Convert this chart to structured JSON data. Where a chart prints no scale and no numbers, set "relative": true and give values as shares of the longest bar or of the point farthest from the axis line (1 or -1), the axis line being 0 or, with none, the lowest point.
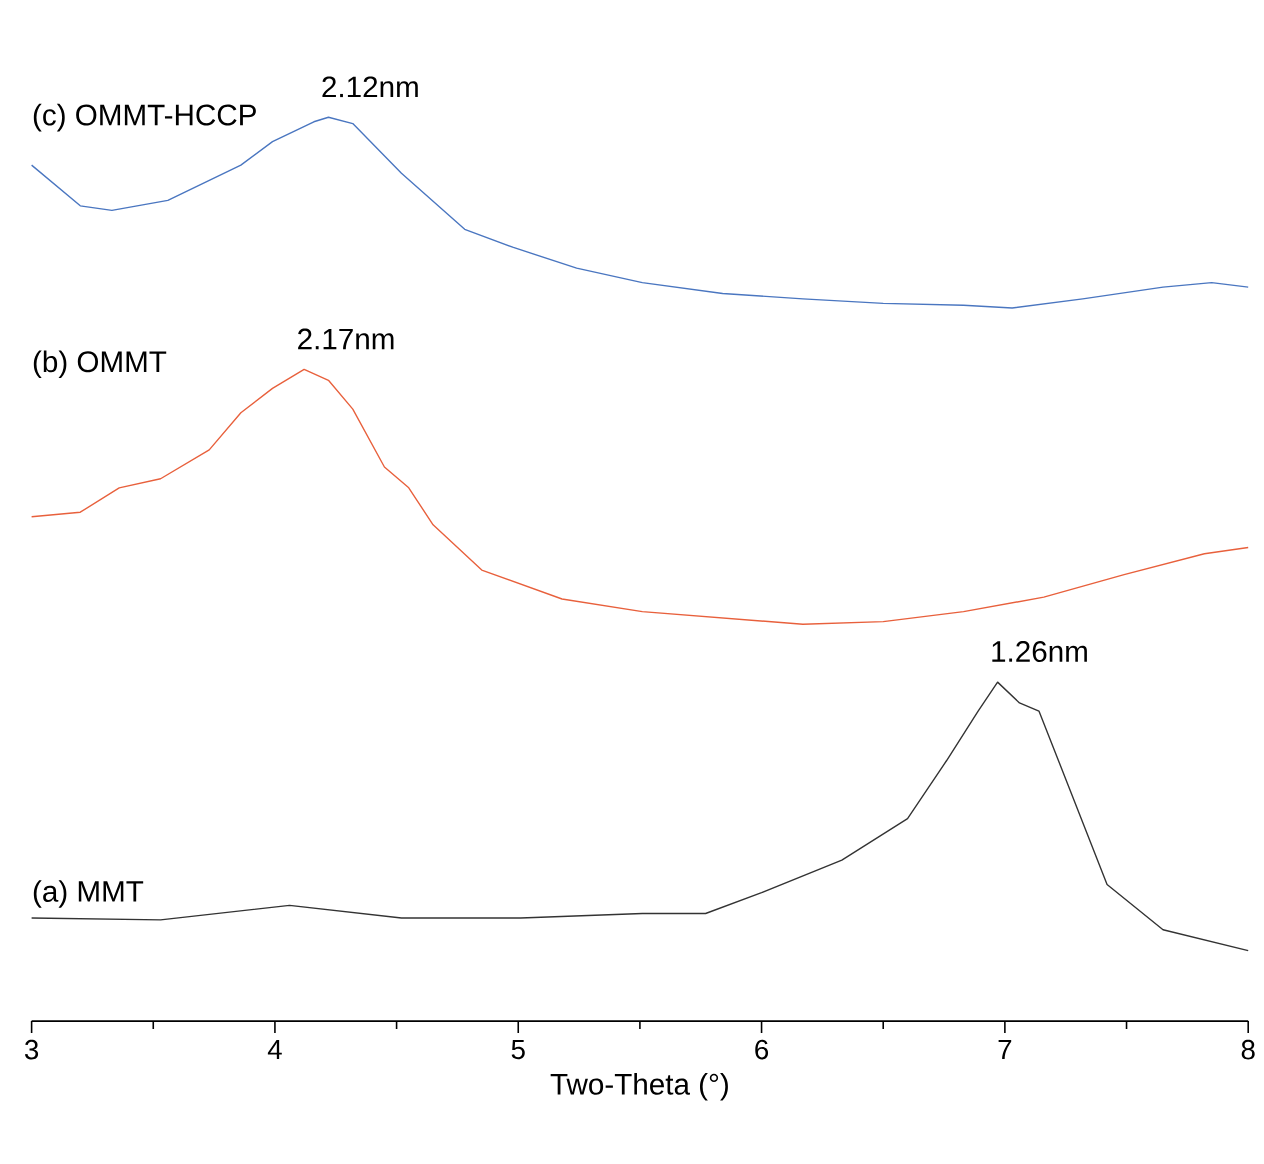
{
  "chart_data": {
    "type": "line",
    "relative": true,
    "xlabel": "Two-Theta (°)",
    "xlim": [
      3,
      8
    ],
    "xticks": [
      3,
      4,
      5,
      6,
      7,
      8
    ],
    "marker": "none",
    "line_style": "solid",
    "grid": false,
    "legend": false,
    "tick_labels": "x",
    "series": [
      {
        "name": "(c) OMMT-HCCP",
        "color": "#4a76c0",
        "x": [
          3.0,
          3.2,
          3.33,
          3.56,
          3.86,
          3.99,
          4.16,
          4.22,
          4.32,
          4.52,
          4.78,
          4.98,
          5.24,
          5.51,
          5.84,
          6.17,
          6.5,
          6.83,
          7.03,
          7.32,
          7.65,
          7.85,
          8.0
        ],
        "values": [
          0.947,
          0.902,
          0.897,
          0.908,
          0.947,
          0.973,
          0.995,
          1.0,
          0.993,
          0.938,
          0.876,
          0.856,
          0.833,
          0.817,
          0.805,
          0.799,
          0.794,
          0.792,
          0.789,
          0.799,
          0.812,
          0.817,
          0.812
        ]
      },
      {
        "name": "(b) OMMT",
        "color": "#e8603c",
        "x": [
          3.0,
          3.2,
          3.36,
          3.53,
          3.73,
          3.86,
          3.99,
          4.12,
          4.22,
          4.32,
          4.45,
          4.55,
          4.65,
          4.85,
          5.18,
          5.51,
          5.84,
          6.17,
          6.5,
          6.83,
          7.16,
          7.49,
          7.82,
          8.0
        ],
        "values": [
          0.558,
          0.563,
          0.59,
          0.6,
          0.632,
          0.673,
          0.7,
          0.721,
          0.709,
          0.677,
          0.613,
          0.59,
          0.549,
          0.499,
          0.467,
          0.453,
          0.446,
          0.439,
          0.442,
          0.453,
          0.469,
          0.494,
          0.517,
          0.524
        ]
      },
      {
        "name": "(a) MMT",
        "color": "#333333",
        "x": [
          3.0,
          3.53,
          4.06,
          4.52,
          5.01,
          5.51,
          5.77,
          6.0,
          6.33,
          6.6,
          6.76,
          6.89,
          6.97,
          7.06,
          7.14,
          7.26,
          7.42,
          7.65,
          8.0
        ],
        "values": [
          0.114,
          0.112,
          0.128,
          0.114,
          0.114,
          0.119,
          0.119,
          0.142,
          0.178,
          0.224,
          0.288,
          0.343,
          0.375,
          0.352,
          0.343,
          0.261,
          0.151,
          0.101,
          0.078
        ]
      }
    ],
    "annotations": [
      {
        "text": "2.12nm",
        "x": 4.22,
        "y": 1.0
      },
      {
        "text": "2.17nm",
        "x": 4.12,
        "y": 0.721
      },
      {
        "text": "1.26nm",
        "x": 6.97,
        "y": 0.375
      }
    ]
  }
}
